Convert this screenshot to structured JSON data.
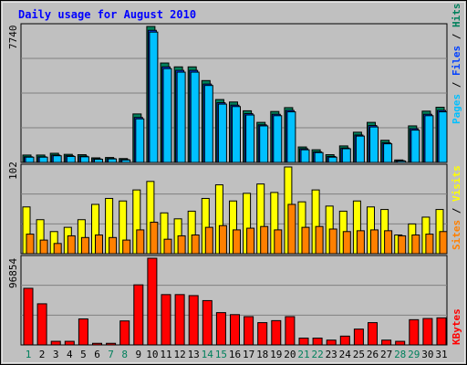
{
  "chart_data": [
    {
      "type": "bar",
      "title": "Daily usage for August 2010",
      "categories": [
        "1",
        "2",
        "3",
        "4",
        "5",
        "6",
        "7",
        "8",
        "9",
        "10",
        "11",
        "12",
        "13",
        "14",
        "15",
        "16",
        "17",
        "18",
        "19",
        "20",
        "21",
        "22",
        "23",
        "24",
        "25",
        "26",
        "27",
        "28",
        "29",
        "30",
        "31"
      ],
      "weekend_days": [
        "1",
        "7",
        "8",
        "14",
        "15",
        "21",
        "22",
        "28",
        "29"
      ],
      "ymax_label": "7740",
      "ylim": [
        0,
        7740
      ],
      "legend": [
        "Pages",
        "Files",
        "Hits"
      ],
      "series": [
        {
          "name": "Hits",
          "color": "#00805C",
          "values": [
            420,
            420,
            520,
            460,
            440,
            260,
            280,
            220,
            2760,
            7740,
            5660,
            5440,
            5440,
            4660,
            3580,
            3440,
            2940,
            2280,
            2900,
            3120,
            880,
            720,
            440,
            940,
            1720,
            2280,
            1260,
            140,
            2080,
            2920,
            3140
          ]
        },
        {
          "name": "Files",
          "color": "#0040FF",
          "values": [
            320,
            320,
            420,
            380,
            360,
            200,
            220,
            160,
            2560,
            7520,
            5440,
            5240,
            5240,
            4460,
            3400,
            3260,
            2780,
            2140,
            2740,
            2960,
            780,
            600,
            340,
            820,
            1560,
            2100,
            1120,
            100,
            1920,
            2740,
            2960
          ]
        },
        {
          "name": "Pages",
          "color": "#00C0FF",
          "values": [
            300,
            300,
            380,
            340,
            320,
            180,
            200,
            140,
            2480,
            7420,
            5340,
            5140,
            5140,
            4380,
            3320,
            3180,
            2700,
            2080,
            2660,
            2880,
            720,
            560,
            300,
            780,
            1500,
            2020,
            1060,
            80,
            1840,
            2660,
            2880
          ]
        }
      ]
    },
    {
      "type": "bar",
      "categories": [
        "1",
        "2",
        "3",
        "4",
        "5",
        "6",
        "7",
        "8",
        "9",
        "10",
        "11",
        "12",
        "13",
        "14",
        "15",
        "16",
        "17",
        "18",
        "19",
        "20",
        "21",
        "22",
        "23",
        "24",
        "25",
        "26",
        "27",
        "28",
        "29",
        "30",
        "31"
      ],
      "ymax_label": "102",
      "ylim": [
        0,
        102
      ],
      "legend": [
        "Sites",
        "Visits"
      ],
      "series": [
        {
          "name": "Visits",
          "color": "#FFFF00",
          "values": [
            55,
            40,
            26,
            31,
            40,
            58,
            65,
            62,
            75,
            85,
            48,
            41,
            50,
            65,
            81,
            62,
            71,
            82,
            72,
            102,
            61,
            75,
            56,
            50,
            62,
            55,
            52,
            22,
            35,
            43,
            52
          ]
        },
        {
          "name": "Sites",
          "color": "#FF8000",
          "values": [
            23,
            16,
            12,
            21,
            19,
            22,
            19,
            16,
            28,
            37,
            17,
            21,
            22,
            31,
            33,
            28,
            30,
            32,
            28,
            58,
            31,
            32,
            29,
            26,
            27,
            28,
            27,
            21,
            22,
            23,
            26
          ]
        }
      ]
    },
    {
      "type": "bar",
      "categories": [
        "1",
        "2",
        "3",
        "4",
        "5",
        "6",
        "7",
        "8",
        "9",
        "10",
        "11",
        "12",
        "13",
        "14",
        "15",
        "16",
        "17",
        "18",
        "19",
        "20",
        "21",
        "22",
        "23",
        "24",
        "25",
        "26",
        "27",
        "28",
        "29",
        "30",
        "31"
      ],
      "ymax_label": "96854",
      "ylim": [
        0,
        96854
      ],
      "legend": [
        "KBytes"
      ],
      "series": [
        {
          "name": "KBytes",
          "color": "#FF0000",
          "values": [
            63250,
            45960,
            4030,
            4030,
            29060,
            1790,
            1790,
            26820,
            67130,
            96854,
            56230,
            56230,
            55110,
            49520,
            36090,
            33850,
            31610,
            24900,
            27140,
            31610,
            7610,
            7610,
            5370,
            9840,
            17680,
            24900,
            5370,
            4030,
            28190,
            29510,
            30280
          ]
        }
      ]
    }
  ]
}
